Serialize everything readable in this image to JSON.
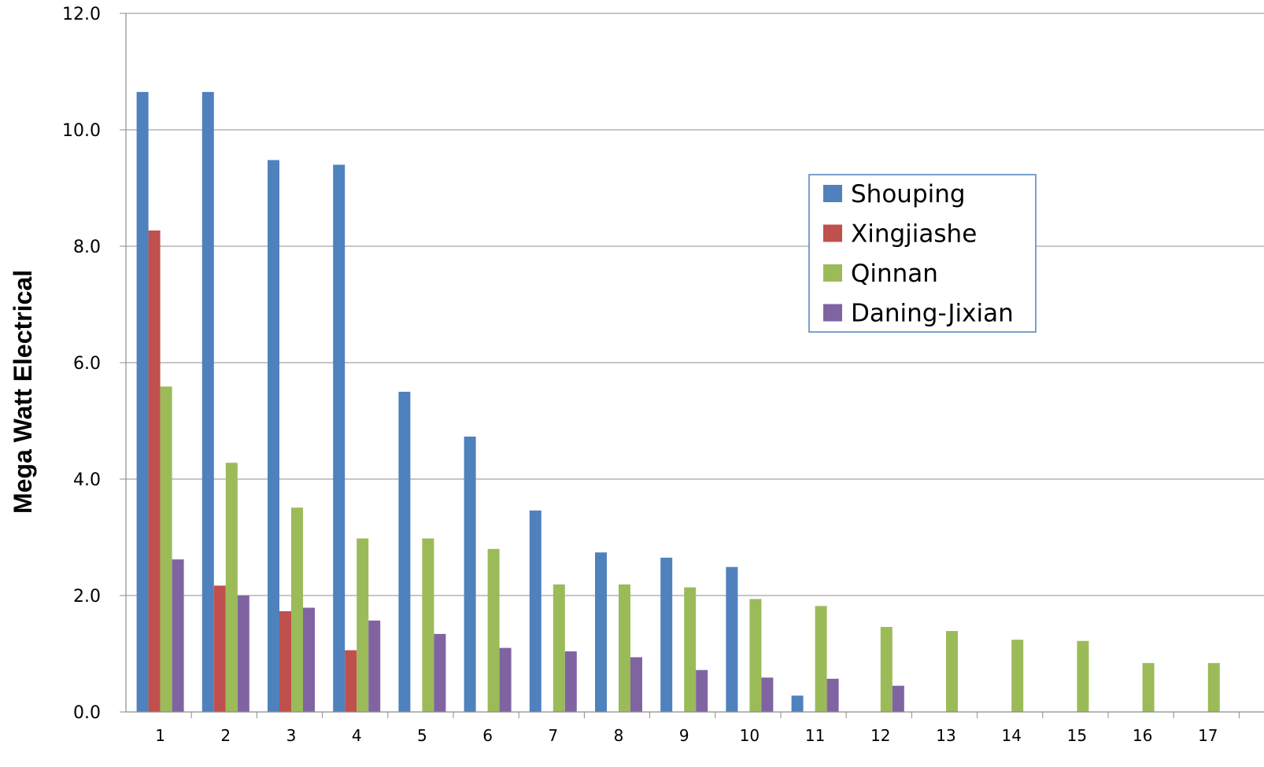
{
  "chart_data": {
    "type": "bar",
    "title": "",
    "xlabel": "",
    "ylabel": "Mega Watt Electrical",
    "ylim": [
      0,
      12
    ],
    "yticks": [
      "0.0",
      "2.0",
      "4.0",
      "6.0",
      "8.0",
      "10.0",
      "12.0"
    ],
    "grid": true,
    "legend_position": "upper-right",
    "categories": [
      "1",
      "2",
      "3",
      "4",
      "5",
      "6",
      "7",
      "8",
      "9",
      "10",
      "11",
      "12",
      "13",
      "14",
      "15",
      "16",
      "17"
    ],
    "series": [
      {
        "name": "Shouping",
        "color": "#4F81BD",
        "values": [
          10.65,
          10.65,
          9.48,
          9.4,
          5.5,
          4.73,
          3.46,
          2.74,
          2.65,
          2.49,
          0.28,
          0,
          0,
          0,
          0,
          0,
          0
        ]
      },
      {
        "name": "Xingjiashe",
        "color": "#C0504D",
        "values": [
          8.27,
          2.17,
          1.73,
          1.06,
          0,
          0,
          0,
          0,
          0,
          0,
          0,
          0,
          0,
          0,
          0,
          0,
          0
        ]
      },
      {
        "name": "Qinnan",
        "color": "#9BBB59",
        "values": [
          5.59,
          4.28,
          3.51,
          2.98,
          2.98,
          2.8,
          2.19,
          2.19,
          2.14,
          1.94,
          1.82,
          1.46,
          1.39,
          1.24,
          1.22,
          0.84,
          0.84
        ]
      },
      {
        "name": "Daning-Jixian",
        "color": "#8064A2",
        "values": [
          2.62,
          2.0,
          1.79,
          1.57,
          1.34,
          1.1,
          1.04,
          0.94,
          0.72,
          0.59,
          0.57,
          0.45,
          0,
          0,
          0,
          0,
          0
        ]
      }
    ]
  }
}
